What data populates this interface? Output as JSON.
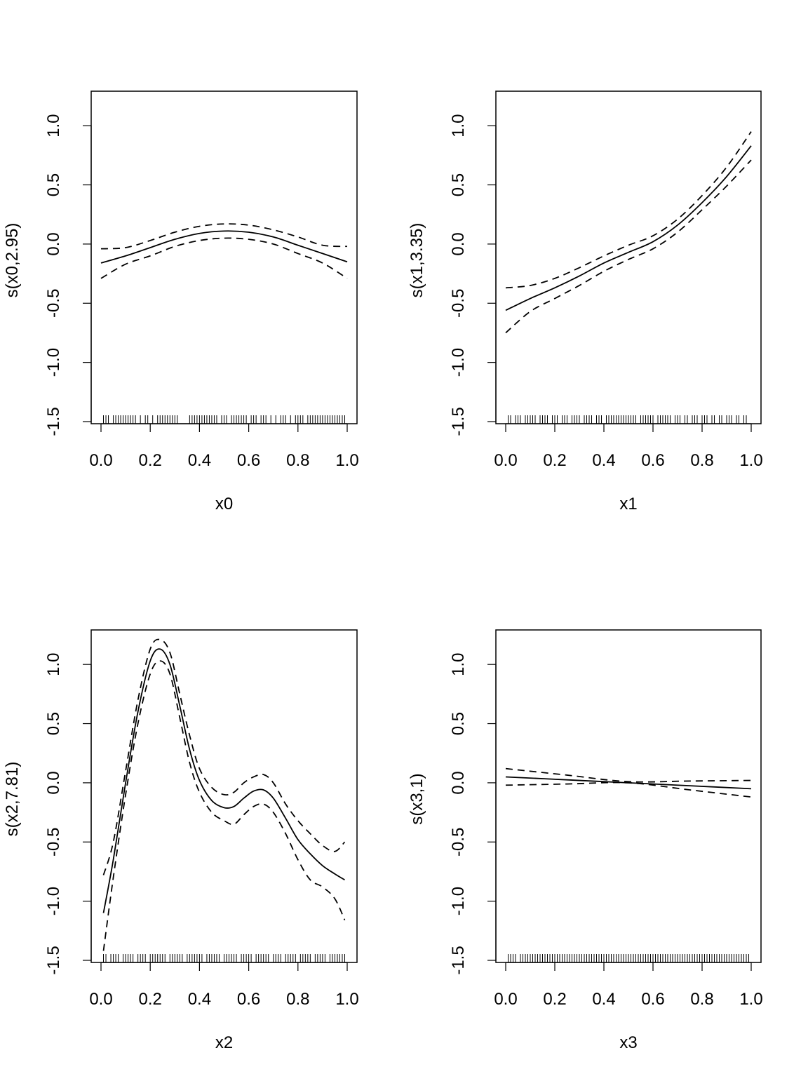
{
  "chart_data": [
    {
      "type": "line",
      "xlabel": "x0",
      "ylabel": "s(x0,2.95)",
      "xlim": [
        0,
        1
      ],
      "ylim": [
        -1.5,
        1.25
      ],
      "xticks": [
        "0.0",
        "0.2",
        "0.4",
        "0.6",
        "0.8",
        "1.0"
      ],
      "yticks": [
        "-1.5",
        "-1.0",
        "-0.5",
        "0.0",
        "0.5",
        "1.0"
      ],
      "x": [
        0.0,
        0.1,
        0.2,
        0.3,
        0.4,
        0.5,
        0.6,
        0.7,
        0.8,
        0.9,
        1.0
      ],
      "series": [
        {
          "style": "solid",
          "values": [
            -0.16,
            -0.1,
            -0.03,
            0.04,
            0.09,
            0.11,
            0.1,
            0.06,
            -0.01,
            -0.08,
            -0.15
          ]
        },
        {
          "style": "dashed",
          "values": [
            -0.04,
            -0.03,
            0.03,
            0.1,
            0.15,
            0.17,
            0.16,
            0.12,
            0.06,
            -0.01,
            -0.02
          ]
        },
        {
          "style": "dashed",
          "values": [
            -0.29,
            -0.17,
            -0.1,
            -0.02,
            0.03,
            0.05,
            0.04,
            0.0,
            -0.08,
            -0.16,
            -0.29
          ]
        }
      ],
      "rug": [
        0.01,
        0.02,
        0.03,
        0.05,
        0.06,
        0.07,
        0.08,
        0.09,
        0.1,
        0.11,
        0.12,
        0.13,
        0.14,
        0.16,
        0.18,
        0.19,
        0.21,
        0.23,
        0.24,
        0.25,
        0.26,
        0.27,
        0.28,
        0.29,
        0.3,
        0.31,
        0.36,
        0.37,
        0.38,
        0.39,
        0.4,
        0.41,
        0.42,
        0.43,
        0.44,
        0.45,
        0.46,
        0.47,
        0.49,
        0.5,
        0.51,
        0.53,
        0.54,
        0.55,
        0.56,
        0.57,
        0.58,
        0.59,
        0.61,
        0.62,
        0.63,
        0.65,
        0.66,
        0.67,
        0.69,
        0.71,
        0.73,
        0.74,
        0.75,
        0.77,
        0.79,
        0.8,
        0.81,
        0.82,
        0.84,
        0.85,
        0.86,
        0.87,
        0.88,
        0.89,
        0.9,
        0.91,
        0.92,
        0.93,
        0.94,
        0.95,
        0.96,
        0.97,
        0.98,
        0.99
      ]
    },
    {
      "type": "line",
      "xlabel": "x1",
      "ylabel": "s(x1,3.35)",
      "xlim": [
        0,
        1
      ],
      "ylim": [
        -1.5,
        1.25
      ],
      "xticks": [
        "0.0",
        "0.2",
        "0.4",
        "0.6",
        "0.8",
        "1.0"
      ],
      "yticks": [
        "-1.5",
        "-1.0",
        "-0.5",
        "0.0",
        "0.5",
        "1.0"
      ],
      "x": [
        0.0,
        0.1,
        0.2,
        0.3,
        0.4,
        0.5,
        0.6,
        0.7,
        0.8,
        0.9,
        1.0
      ],
      "series": [
        {
          "style": "solid",
          "values": [
            -0.56,
            -0.46,
            -0.37,
            -0.27,
            -0.16,
            -0.07,
            0.02,
            0.16,
            0.35,
            0.57,
            0.83
          ]
        },
        {
          "style": "dashed",
          "values": [
            -0.37,
            -0.35,
            -0.29,
            -0.2,
            -0.1,
            -0.01,
            0.07,
            0.21,
            0.41,
            0.65,
            0.95
          ]
        },
        {
          "style": "dashed",
          "values": [
            -0.75,
            -0.57,
            -0.46,
            -0.35,
            -0.23,
            -0.13,
            -0.04,
            0.1,
            0.29,
            0.49,
            0.71
          ]
        }
      ],
      "rug": [
        0.01,
        0.02,
        0.04,
        0.05,
        0.06,
        0.08,
        0.09,
        0.1,
        0.11,
        0.12,
        0.14,
        0.15,
        0.16,
        0.17,
        0.19,
        0.2,
        0.21,
        0.23,
        0.24,
        0.25,
        0.27,
        0.28,
        0.29,
        0.3,
        0.32,
        0.33,
        0.34,
        0.35,
        0.37,
        0.38,
        0.39,
        0.41,
        0.42,
        0.43,
        0.44,
        0.45,
        0.46,
        0.47,
        0.48,
        0.49,
        0.5,
        0.51,
        0.52,
        0.53,
        0.55,
        0.56,
        0.57,
        0.58,
        0.59,
        0.6,
        0.62,
        0.63,
        0.64,
        0.65,
        0.66,
        0.67,
        0.69,
        0.7,
        0.71,
        0.73,
        0.74,
        0.76,
        0.77,
        0.78,
        0.8,
        0.81,
        0.82,
        0.84,
        0.85,
        0.87,
        0.88,
        0.9,
        0.91,
        0.92,
        0.94,
        0.95,
        0.97,
        0.98
      ]
    },
    {
      "type": "line",
      "xlabel": "x2",
      "ylabel": "s(x2,7.81)",
      "xlim": [
        0,
        1
      ],
      "ylim": [
        -1.5,
        1.25
      ],
      "xticks": [
        "0.0",
        "0.2",
        "0.4",
        "0.6",
        "0.8",
        "1.0"
      ],
      "yticks": [
        "-1.5",
        "-1.0",
        "-0.5",
        "0.0",
        "0.5",
        "1.0"
      ],
      "x": [
        0.01,
        0.05,
        0.1,
        0.15,
        0.2,
        0.24,
        0.28,
        0.32,
        0.36,
        0.4,
        0.45,
        0.5,
        0.54,
        0.58,
        0.62,
        0.66,
        0.7,
        0.75,
        0.8,
        0.85,
        0.9,
        0.95,
        0.99
      ],
      "series": [
        {
          "style": "solid",
          "values": [
            -1.1,
            -0.65,
            0.0,
            0.6,
            1.03,
            1.13,
            1.0,
            0.65,
            0.28,
            0.02,
            -0.15,
            -0.21,
            -0.2,
            -0.13,
            -0.07,
            -0.06,
            -0.13,
            -0.3,
            -0.48,
            -0.6,
            -0.7,
            -0.77,
            -0.82
          ]
        },
        {
          "style": "dashed",
          "values": [
            -0.78,
            -0.5,
            0.1,
            0.7,
            1.13,
            1.21,
            1.1,
            0.75,
            0.4,
            0.12,
            -0.04,
            -0.1,
            -0.08,
            0.0,
            0.05,
            0.07,
            0.0,
            -0.18,
            -0.32,
            -0.43,
            -0.53,
            -0.58,
            -0.5
          ]
        },
        {
          "style": "dashed",
          "values": [
            -1.42,
            -0.8,
            -0.1,
            0.5,
            0.92,
            1.03,
            0.92,
            0.55,
            0.17,
            -0.08,
            -0.25,
            -0.32,
            -0.35,
            -0.27,
            -0.2,
            -0.18,
            -0.25,
            -0.43,
            -0.65,
            -0.82,
            -0.88,
            -0.98,
            -1.16
          ]
        }
      ],
      "rug": [
        0.01,
        0.02,
        0.04,
        0.05,
        0.06,
        0.07,
        0.09,
        0.1,
        0.11,
        0.12,
        0.13,
        0.15,
        0.16,
        0.17,
        0.18,
        0.2,
        0.21,
        0.22,
        0.23,
        0.24,
        0.25,
        0.26,
        0.28,
        0.29,
        0.3,
        0.31,
        0.32,
        0.33,
        0.35,
        0.36,
        0.37,
        0.38,
        0.39,
        0.4,
        0.41,
        0.43,
        0.44,
        0.45,
        0.46,
        0.47,
        0.48,
        0.5,
        0.51,
        0.52,
        0.53,
        0.54,
        0.55,
        0.57,
        0.58,
        0.59,
        0.6,
        0.61,
        0.63,
        0.64,
        0.65,
        0.66,
        0.67,
        0.68,
        0.7,
        0.71,
        0.72,
        0.73,
        0.75,
        0.76,
        0.77,
        0.78,
        0.79,
        0.81,
        0.82,
        0.83,
        0.84,
        0.85,
        0.87,
        0.88,
        0.89,
        0.9,
        0.91,
        0.93,
        0.94,
        0.95,
        0.96,
        0.97,
        0.98,
        0.99
      ]
    },
    {
      "type": "line",
      "xlabel": "x3",
      "ylabel": "s(x3,1)",
      "xlim": [
        0,
        1
      ],
      "ylim": [
        -1.5,
        1.25
      ],
      "xticks": [
        "0.0",
        "0.2",
        "0.4",
        "0.6",
        "0.8",
        "1.0"
      ],
      "yticks": [
        "-1.5",
        "-1.0",
        "-0.5",
        "0.0",
        "0.5",
        "1.0"
      ],
      "x": [
        0.0,
        0.25,
        0.5,
        0.75,
        1.0
      ],
      "series": [
        {
          "style": "solid",
          "values": [
            0.05,
            0.025,
            0.0,
            -0.025,
            -0.05
          ]
        },
        {
          "style": "dashed",
          "values": [
            0.12,
            0.065,
            0.01,
            0.015,
            0.02
          ]
        },
        {
          "style": "dashed",
          "values": [
            -0.02,
            -0.01,
            0.0,
            -0.06,
            -0.12
          ]
        }
      ],
      "rug": [
        0.01,
        0.02,
        0.03,
        0.04,
        0.06,
        0.07,
        0.08,
        0.09,
        0.1,
        0.11,
        0.12,
        0.13,
        0.14,
        0.15,
        0.16,
        0.17,
        0.18,
        0.19,
        0.2,
        0.21,
        0.22,
        0.23,
        0.24,
        0.25,
        0.26,
        0.27,
        0.28,
        0.29,
        0.3,
        0.31,
        0.32,
        0.33,
        0.34,
        0.35,
        0.36,
        0.37,
        0.38,
        0.39,
        0.4,
        0.41,
        0.42,
        0.43,
        0.44,
        0.45,
        0.46,
        0.47,
        0.48,
        0.49,
        0.5,
        0.51,
        0.52,
        0.53,
        0.54,
        0.55,
        0.56,
        0.57,
        0.58,
        0.59,
        0.6,
        0.61,
        0.62,
        0.63,
        0.64,
        0.65,
        0.66,
        0.67,
        0.68,
        0.69,
        0.7,
        0.71,
        0.72,
        0.73,
        0.74,
        0.75,
        0.76,
        0.77,
        0.78,
        0.79,
        0.8,
        0.81,
        0.82,
        0.83,
        0.84,
        0.85,
        0.86,
        0.87,
        0.88,
        0.89,
        0.9,
        0.91,
        0.92,
        0.93,
        0.94,
        0.95,
        0.96,
        0.97,
        0.98,
        0.99
      ]
    }
  ]
}
